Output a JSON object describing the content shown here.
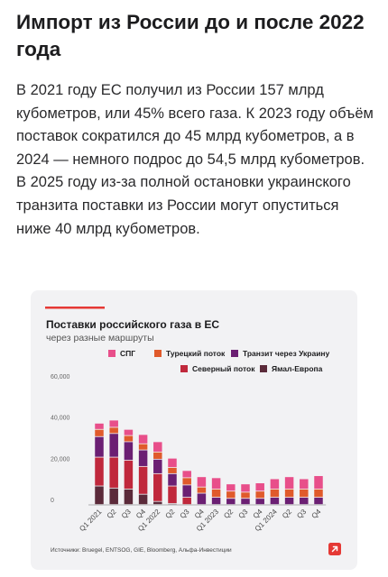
{
  "article": {
    "title": "Импорт из России до и после 2022 года",
    "body": "В 2021 году ЕС получил из России 157 млрд кубометров, или 45% всего газа. К 2023 году объём поставок сократился до 45 млрд кубометров, а в 2024 — немного подрос до 54,5 млрд кубометров. В 2025 году из-за полной остановки украинского транзита поставки из России могут опуститься ниже 40 млрд кубометров."
  },
  "chart_card": {
    "accent_color": "#e53935",
    "source": "Источники: Bruegel, ENTSOG, GIE, Bloomberg, Альфа-Инвестиции",
    "logo_icon": "alfa-arrow-logo-icon"
  },
  "chart_data": {
    "type": "bar",
    "stacked": true,
    "title": "Поставки российского газа в ЕС",
    "subtitle": "через разные маршруты",
    "ylim": [
      0,
      60000
    ],
    "yticks": [
      0,
      20000,
      40000,
      60000
    ],
    "ytick_labels": [
      "0",
      "20,000",
      "40,000",
      "60,000"
    ],
    "grid": false,
    "legend_position": "top-right",
    "categories": [
      "Q1 2021",
      "Q2",
      "Q3",
      "Q4",
      "Q1 2022",
      "Q2",
      "Q3",
      "Q4",
      "Q1 2023",
      "Q2",
      "Q3",
      "Q4",
      "Q1 2024",
      "Q2",
      "Q3",
      "Q4"
    ],
    "series": [
      {
        "name": "Ямал-Европа",
        "color": "#5b2a3a",
        "values": [
          9000,
          8000,
          7500,
          5000,
          1500,
          500,
          0,
          0,
          0,
          0,
          0,
          0,
          0,
          0,
          0,
          0
        ]
      },
      {
        "name": "Северный поток",
        "color": "#c0283c",
        "values": [
          14000,
          15000,
          14000,
          13500,
          13500,
          8500,
          3500,
          0,
          0,
          0,
          0,
          0,
          0,
          0,
          0,
          0
        ]
      },
      {
        "name": "Транзит через Украину",
        "color": "#6b1f73",
        "values": [
          10000,
          11500,
          9000,
          8000,
          7000,
          6000,
          6000,
          5500,
          3500,
          3000,
          3000,
          3000,
          3500,
          3500,
          3500,
          3500
        ]
      },
      {
        "name": "Турецкий поток",
        "color": "#e05a2b",
        "values": [
          3500,
          3000,
          3000,
          3000,
          3500,
          3000,
          3500,
          3000,
          4000,
          3500,
          3000,
          3500,
          4000,
          4000,
          4000,
          4000
        ]
      },
      {
        "name": "СПГ",
        "color": "#e84f8a",
        "values": [
          3000,
          3500,
          3000,
          4500,
          5000,
          4500,
          3500,
          5000,
          5500,
          3500,
          4000,
          4000,
          5000,
          6000,
          5000,
          6500
        ]
      }
    ],
    "legend_order": [
      "СПГ",
      "Турецкий поток",
      "Транзит через Украину",
      "Северный поток",
      "Ямал-Европа"
    ]
  }
}
